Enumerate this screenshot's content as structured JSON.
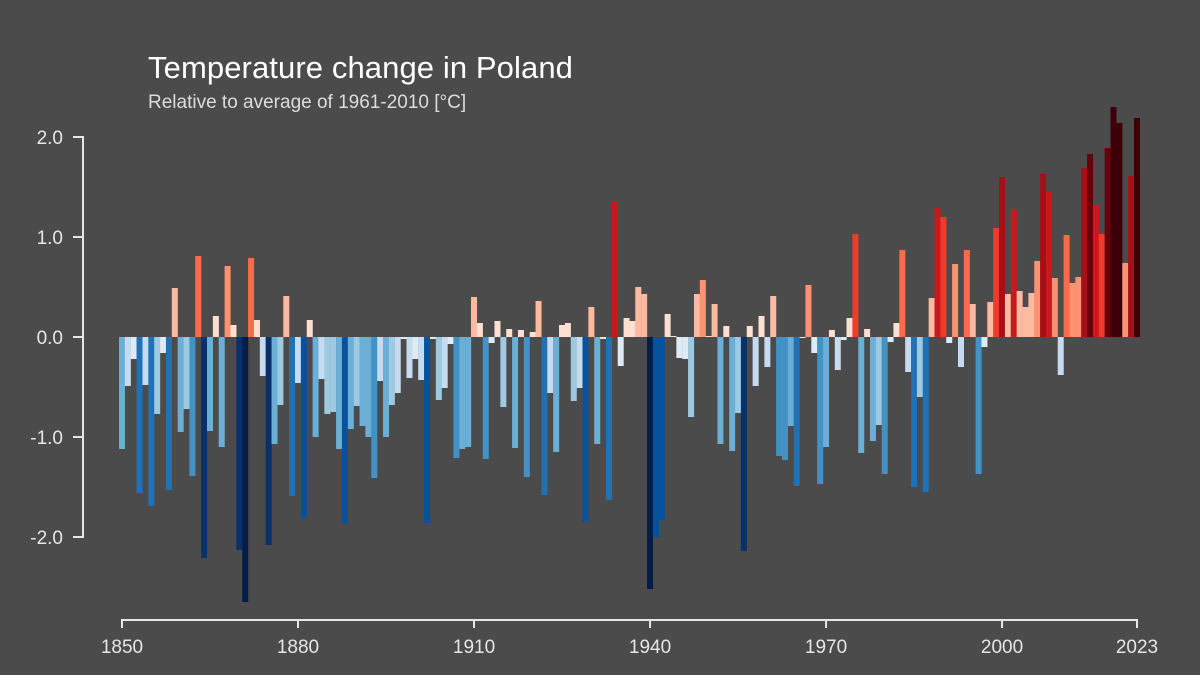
{
  "chart_data": {
    "type": "bar",
    "title": "Temperature change in Poland",
    "subtitle": "Relative to average of 1961-2010  [°C]",
    "xlabel": "",
    "ylabel": "",
    "x_start": 1850,
    "x_end": 2023,
    "ylim": [
      -2.8,
      2.4
    ],
    "y_axis_range": [
      -2.0,
      2.0
    ],
    "y_ticks": [
      2.0,
      1.0,
      0.0,
      -1.0,
      -2.0
    ],
    "y_tick_labels": [
      "2.0",
      "1.0",
      "0.0",
      "-1.0",
      "-2.0"
    ],
    "x_ticks": [
      1850,
      1880,
      1910,
      1940,
      1970,
      2000,
      2023
    ],
    "x_tick_labels": [
      "1850",
      "1880",
      "1910",
      "1940",
      "1970",
      "2000",
      "2023"
    ],
    "grid": false,
    "legend": "none",
    "color_scale": {
      "negative": [
        "#deebf7",
        "#c6dbef",
        "#9ecae1",
        "#6baed6",
        "#4292c6",
        "#2171b5",
        "#08519c",
        "#08306b",
        "#041d48"
      ],
      "positive": [
        "#fee0d2",
        "#fcbba1",
        "#fc9272",
        "#fb6a4a",
        "#ef3b2c",
        "#cb181d",
        "#a50f15",
        "#67000d",
        "#3d0008"
      ]
    },
    "years": [
      1850,
      1851,
      1852,
      1853,
      1854,
      1855,
      1856,
      1857,
      1858,
      1859,
      1860,
      1861,
      1862,
      1863,
      1864,
      1865,
      1866,
      1867,
      1868,
      1869,
      1870,
      1871,
      1872,
      1873,
      1874,
      1875,
      1876,
      1877,
      1878,
      1879,
      1880,
      1881,
      1882,
      1883,
      1884,
      1885,
      1886,
      1887,
      1888,
      1889,
      1890,
      1891,
      1892,
      1893,
      1894,
      1895,
      1896,
      1897,
      1898,
      1899,
      1900,
      1901,
      1902,
      1903,
      1904,
      1905,
      1906,
      1907,
      1908,
      1909,
      1910,
      1911,
      1912,
      1913,
      1914,
      1915,
      1916,
      1917,
      1918,
      1919,
      1920,
      1921,
      1922,
      1923,
      1924,
      1925,
      1926,
      1927,
      1928,
      1929,
      1930,
      1931,
      1932,
      1933,
      1934,
      1935,
      1936,
      1937,
      1938,
      1939,
      1940,
      1941,
      1942,
      1943,
      1944,
      1945,
      1946,
      1947,
      1948,
      1949,
      1950,
      1951,
      1952,
      1953,
      1954,
      1955,
      1956,
      1957,
      1958,
      1959,
      1960,
      1961,
      1962,
      1963,
      1964,
      1965,
      1966,
      1967,
      1968,
      1969,
      1970,
      1971,
      1972,
      1973,
      1974,
      1975,
      1976,
      1977,
      1978,
      1979,
      1980,
      1981,
      1982,
      1983,
      1984,
      1985,
      1986,
      1987,
      1988,
      1989,
      1990,
      1991,
      1992,
      1993,
      1994,
      1995,
      1996,
      1997,
      1998,
      1999,
      2000,
      2001,
      2002,
      2003,
      2004,
      2005,
      2006,
      2007,
      2008,
      2009,
      2010,
      2011,
      2012,
      2013,
      2014,
      2015,
      2016,
      2017,
      2018,
      2019,
      2020,
      2021,
      2022,
      2023
    ],
    "values": [
      -1.12,
      -0.49,
      -0.22,
      -1.56,
      -0.48,
      -1.69,
      -0.77,
      -0.16,
      -1.53,
      0.49,
      -0.95,
      -0.72,
      -1.39,
      0.81,
      -2.21,
      -0.94,
      0.21,
      -1.1,
      0.71,
      0.12,
      -2.13,
      -2.65,
      0.79,
      0.17,
      -0.39,
      -2.08,
      -1.07,
      -0.68,
      0.41,
      -1.59,
      -0.46,
      -1.81,
      0.17,
      -1.0,
      -0.42,
      -0.77,
      -0.75,
      -1.12,
      -1.87,
      -0.92,
      -0.69,
      -0.89,
      -1.0,
      -1.41,
      -0.44,
      -1.0,
      -0.68,
      -0.56,
      -0.02,
      -0.41,
      -0.22,
      -0.43,
      -1.86,
      -0.02,
      -0.63,
      -0.51,
      -0.07,
      -1.21,
      -1.12,
      -1.1,
      0.4,
      0.14,
      -1.22,
      -0.06,
      0.16,
      -0.7,
      0.08,
      -1.11,
      0.07,
      -1.4,
      0.05,
      0.36,
      -1.58,
      -0.56,
      -1.15,
      0.12,
      0.14,
      -0.64,
      -0.51,
      -1.85,
      0.3,
      -1.07,
      -0.02,
      -1.63,
      1.36,
      -0.29,
      0.19,
      0.16,
      0.5,
      0.43,
      -2.52,
      -2.0,
      -1.83,
      0.23,
      0.01,
      -0.21,
      -0.22,
      -0.8,
      0.43,
      0.57,
      0.01,
      0.33,
      -1.07,
      0.11,
      -1.14,
      -0.76,
      -2.14,
      0.11,
      -0.49,
      0.21,
      -0.3,
      0.41,
      -1.19,
      -1.23,
      -0.89,
      -1.49,
      -0.01,
      0.52,
      -0.16,
      -1.47,
      -1.1,
      0.07,
      -0.33,
      -0.03,
      0.19,
      1.03,
      -1.16,
      0.08,
      -1.04,
      -0.88,
      -1.37,
      -0.05,
      0.14,
      0.87,
      -0.35,
      -1.5,
      -0.6,
      -1.55,
      0.39,
      1.29,
      1.2,
      -0.06,
      0.73,
      -0.3,
      0.87,
      0.33,
      -1.37,
      -0.1,
      0.35,
      1.09,
      1.6,
      0.43,
      1.28,
      0.46,
      0.3,
      0.44,
      0.76,
      1.63,
      1.45,
      0.59,
      -0.38,
      1.02,
      0.54,
      0.6,
      1.69,
      1.83,
      1.32,
      1.03,
      1.89,
      2.3,
      2.14,
      0.74,
      1.61,
      2.19
    ]
  }
}
